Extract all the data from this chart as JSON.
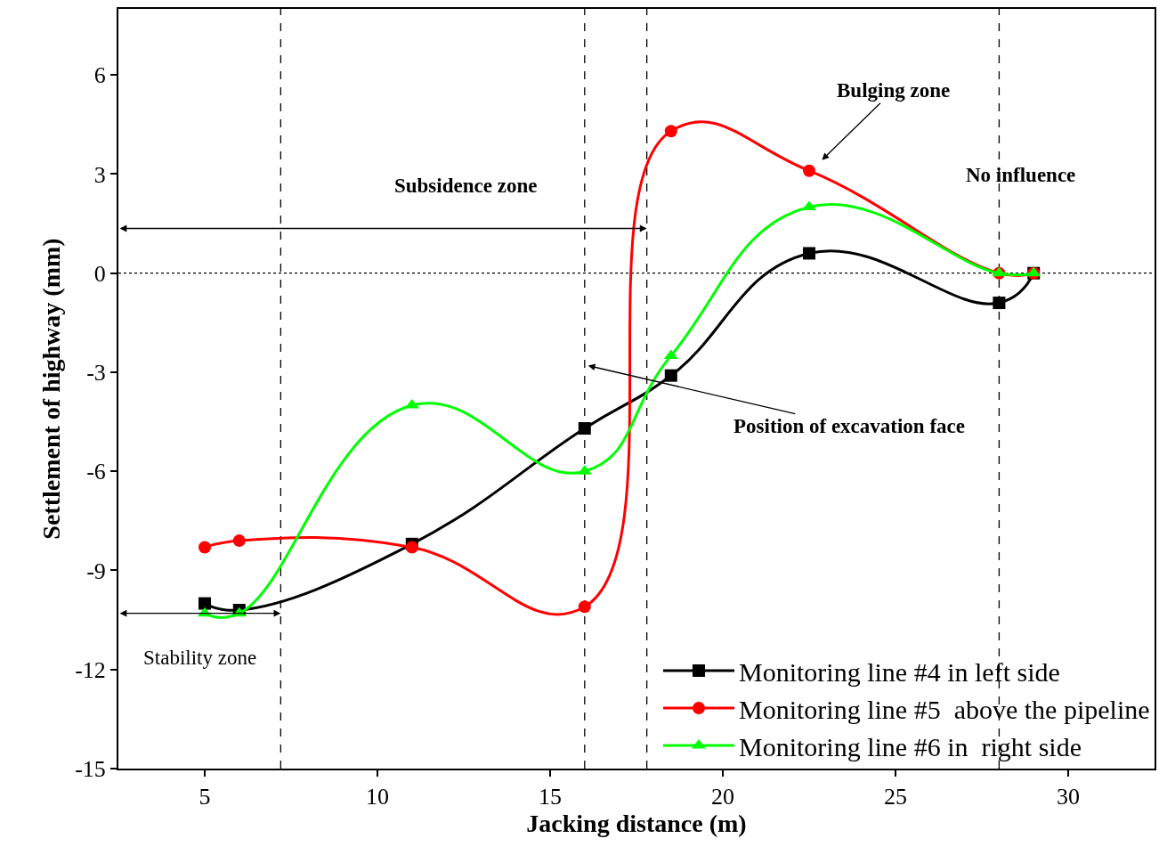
{
  "chart_data": {
    "type": "line",
    "xlabel": "Jacking distance (m)",
    "ylabel": "Settlement of highway (mm)",
    "x": [
      5,
      6,
      11,
      16,
      18.5,
      22.5,
      28,
      29
    ],
    "series": [
      {
        "name": "Monitoring line #4 in left side",
        "color": "#000000",
        "marker": "square",
        "values": [
          -10.0,
          -10.2,
          -8.2,
          -4.7,
          -3.1,
          0.6,
          -0.9,
          0
        ]
      },
      {
        "name": "Monitoring line #5  above the pipeline",
        "color": "#ff0000",
        "marker": "circle",
        "values": [
          -8.3,
          -8.1,
          -8.3,
          -10.1,
          4.3,
          3.1,
          0,
          0
        ]
      },
      {
        "name": "Monitoring line #6 in  right side",
        "color": "#00ff00",
        "marker": "triangle",
        "values": [
          -10.3,
          -10.3,
          -4.0,
          -6.0,
          -2.5,
          2.0,
          0,
          0
        ]
      }
    ],
    "xlim": [
      2.5,
      32.5
    ],
    "ylim": [
      -15,
      8
    ],
    "xticks": [
      5,
      10,
      15,
      20,
      25,
      30
    ],
    "yticks": [
      -15,
      -12,
      -9,
      -6,
      -3,
      0,
      3,
      6
    ],
    "ref_lines": [
      {
        "axis": "y",
        "value": 0,
        "label": null,
        "color": "#000000",
        "line_style": "dotted"
      },
      {
        "axis": "x",
        "value": 7.2,
        "label": null,
        "color": "#000000",
        "line_style": "dashed"
      },
      {
        "axis": "x",
        "value": 16,
        "label": null,
        "color": "#000000",
        "line_style": "dashed"
      },
      {
        "axis": "x",
        "value": 17.8,
        "label": null,
        "color": "#000000",
        "line_style": "dashed"
      },
      {
        "axis": "x",
        "value": 28,
        "label": null,
        "color": "#000000",
        "line_style": "dashed"
      }
    ],
    "annotations": [
      "Subsidence zone",
      {
        "text": "Stability zone",
        "x": 7.2,
        "y": -10.3
      },
      "Bulging zone",
      {
        "text": "Position of excavation face",
        "x": 16.1,
        "y": -2.8
      },
      "No influence"
    ],
    "grid": false,
    "legend": "bottom right",
    "line_style": "solid"
  }
}
